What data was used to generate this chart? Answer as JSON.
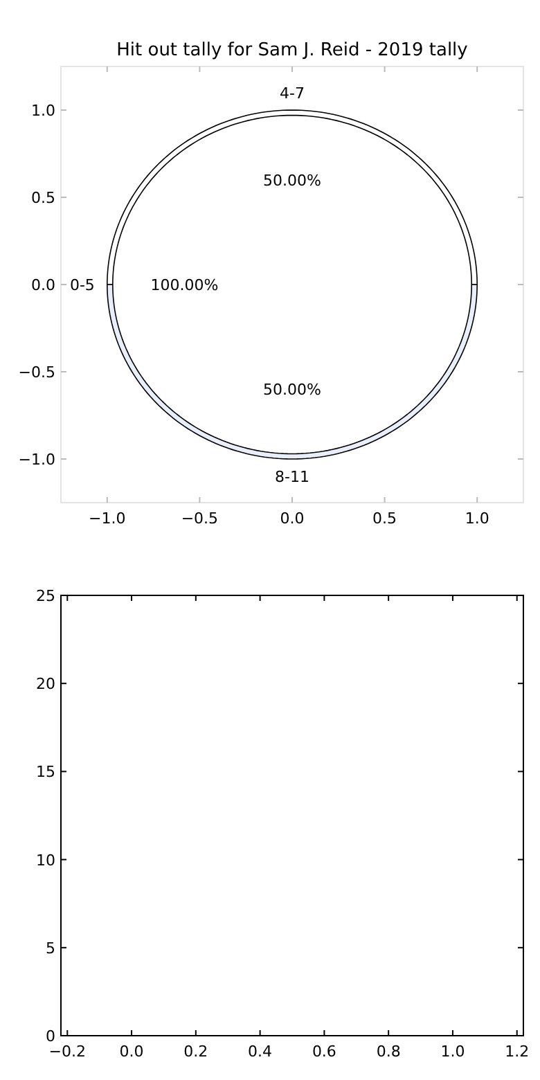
{
  "chart_data": [
    {
      "type": "pie",
      "title": "Hit out tally for Sam J. Reid - 2019 tally",
      "categories": [
        "4-7",
        "8-11"
      ],
      "values": [
        50,
        50
      ],
      "colors": [
        "#ffffff",
        "#e8eefa"
      ],
      "value_labels": [
        "50.00%",
        "50.00%"
      ]
    },
    {
      "type": "pie",
      "categories": [
        "0-5"
      ],
      "values": [
        100
      ],
      "colors": [
        "#ffffff"
      ],
      "value_labels": [
        "100.00%"
      ]
    },
    {
      "type": "line",
      "xlim": [
        -1.25,
        1.25
      ],
      "ylim": [
        -1.25,
        1.25
      ],
      "xticks": [
        {
          "value": -1,
          "label": "−1.0"
        },
        {
          "value": -0.5,
          "label": "−0.5"
        },
        {
          "value": 0,
          "label": "0.0"
        },
        {
          "value": 0.5,
          "label": "0.5"
        },
        {
          "value": 1,
          "label": "1.0"
        }
      ],
      "yticks": [
        {
          "value": -1,
          "label": "−1.0"
        },
        {
          "value": -0.5,
          "label": "−0.5"
        },
        {
          "value": 0,
          "label": "0.0"
        },
        {
          "value": 0.5,
          "label": "0.5"
        },
        {
          "value": 1,
          "label": "1.0"
        }
      ]
    },
    {
      "type": "line",
      "xlim": [
        -0.22,
        1.22
      ],
      "ylim": [
        0,
        25
      ],
      "xticks": [
        {
          "value": -0.2,
          "label": "−0.2"
        },
        {
          "value": 0,
          "label": "0.0"
        },
        {
          "value": 0.2,
          "label": "0.2"
        },
        {
          "value": 0.4,
          "label": "0.4"
        },
        {
          "value": 0.6,
          "label": "0.6"
        },
        {
          "value": 0.8,
          "label": "0.8"
        },
        {
          "value": 1,
          "label": "1.0"
        },
        {
          "value": 1.2,
          "label": "1.2"
        }
      ],
      "yticks": [
        0,
        5,
        10,
        15,
        20,
        25
      ]
    }
  ]
}
